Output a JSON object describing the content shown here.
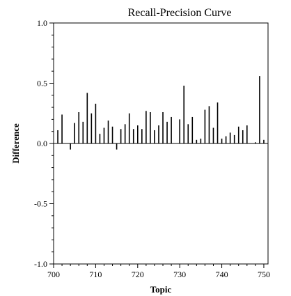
{
  "chart_data": {
    "type": "bar",
    "title": "Recall-Precision Curve",
    "xlabel": "Topic",
    "ylabel": "Difference",
    "xlim": [
      700,
      751
    ],
    "ylim": [
      -1.0,
      1.0
    ],
    "x_ticks": [
      700,
      710,
      720,
      730,
      740,
      750
    ],
    "y_ticks": [
      {
        "value": 1.0,
        "label": "1.0"
      },
      {
        "value": 0.5,
        "label": "0.5"
      },
      {
        "value": 0.0,
        "label": "0.0"
      },
      {
        "value": -0.5,
        "label": "-0.5"
      },
      {
        "value": -1.0,
        "label": "-1.0"
      }
    ],
    "grid": false,
    "x": [
      701,
      702,
      703,
      704,
      705,
      706,
      707,
      708,
      709,
      710,
      711,
      712,
      713,
      714,
      715,
      716,
      717,
      718,
      719,
      720,
      721,
      722,
      723,
      724,
      725,
      726,
      727,
      728,
      729,
      730,
      731,
      732,
      733,
      734,
      735,
      736,
      737,
      738,
      739,
      740,
      741,
      742,
      743,
      744,
      745,
      746,
      747,
      748,
      749,
      750
    ],
    "values": [
      0.11,
      0.24,
      0.0,
      -0.05,
      0.17,
      0.26,
      0.18,
      0.42,
      0.25,
      0.33,
      0.08,
      0.13,
      0.19,
      0.14,
      -0.05,
      0.12,
      0.16,
      0.25,
      0.12,
      0.15,
      0.12,
      0.27,
      0.26,
      0.11,
      0.15,
      0.26,
      0.18,
      0.22,
      0.0,
      0.2,
      0.48,
      0.16,
      0.22,
      0.03,
      0.04,
      0.28,
      0.31,
      0.13,
      0.34,
      0.04,
      0.06,
      0.09,
      0.07,
      0.14,
      0.11,
      0.15,
      0.0,
      0.01,
      0.56,
      0.03
    ]
  }
}
